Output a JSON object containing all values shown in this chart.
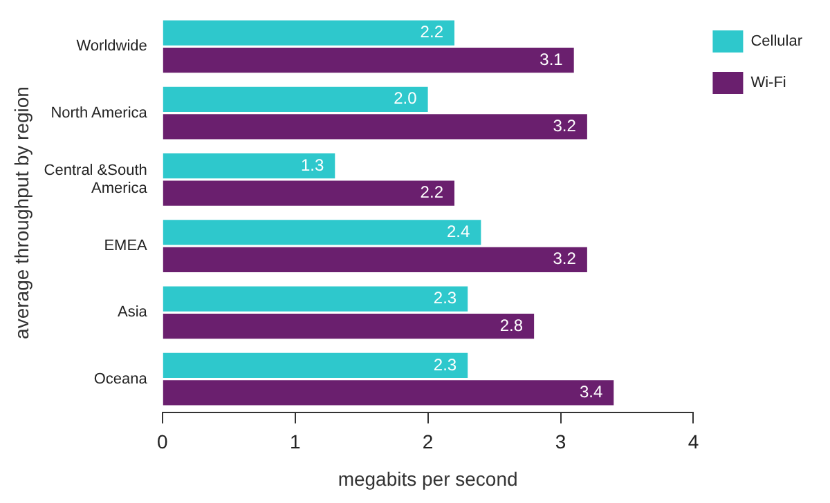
{
  "chart_data": {
    "type": "bar",
    "orientation": "horizontal",
    "ylabel": "average throughput by region",
    "xlabel": "megabits per second",
    "categories": [
      "Worldwide",
      "North America",
      "Central &South America",
      "EMEA",
      "Asia",
      "Oceana"
    ],
    "series": [
      {
        "name": "Cellular",
        "color": "#2ec8cc",
        "values": [
          2.2,
          2.0,
          1.3,
          2.4,
          2.3,
          2.3
        ],
        "value_labels": [
          "2.2",
          "2.0",
          "1.3",
          "2.4",
          "2.3",
          "2.3"
        ]
      },
      {
        "name": "Wi-Fi",
        "color": "#6a1f6e",
        "values": [
          3.1,
          3.2,
          2.2,
          3.2,
          2.8,
          3.4
        ],
        "value_labels": [
          "3.1",
          "3.2",
          "2.2",
          "3.2",
          "2.8",
          "3.4"
        ]
      }
    ],
    "xlim": [
      0,
      4
    ],
    "xticks": [
      0,
      1,
      2,
      3,
      4
    ],
    "grid": false,
    "legend": "top right"
  }
}
